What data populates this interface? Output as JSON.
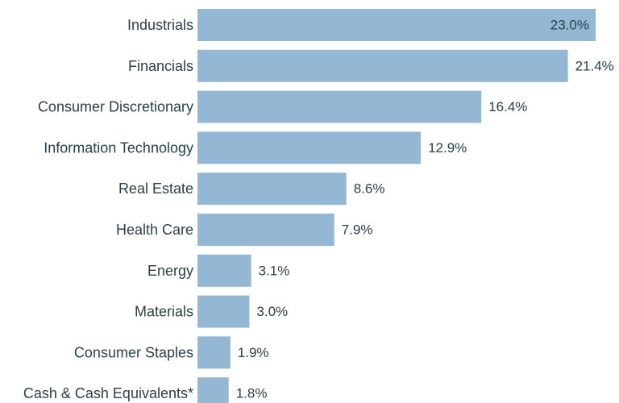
{
  "chart_data": {
    "type": "bar",
    "orientation": "horizontal",
    "categories": [
      "Industrials",
      "Financials",
      "Consumer Discretionary",
      "Information Technology",
      "Real Estate",
      "Health Care",
      "Energy",
      "Materials",
      "Consumer Staples",
      "Cash & Cash Equivalents*"
    ],
    "values": [
      23.0,
      21.4,
      16.4,
      12.9,
      8.6,
      7.9,
      3.1,
      3.0,
      1.9,
      1.8
    ],
    "value_labels": [
      "23.0%",
      "21.4%",
      "16.4%",
      "12.9%",
      "8.6%",
      "7.9%",
      "3.1%",
      "3.0%",
      "1.9%",
      "1.8%"
    ],
    "title": "",
    "xlabel": "",
    "ylabel": "",
    "xlim": [
      0,
      23.0
    ],
    "grid": false,
    "legend": "none",
    "bar_color": "#94b8d4",
    "text_color": "#2b3f4a"
  }
}
